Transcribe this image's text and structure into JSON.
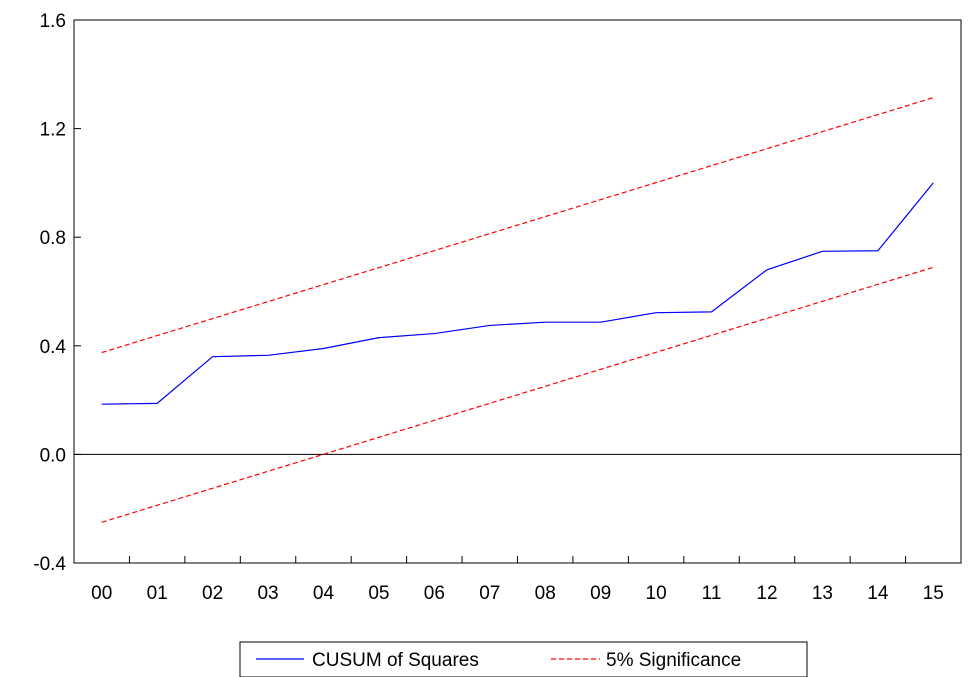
{
  "chart_data": {
    "type": "line",
    "title": "",
    "xlabel": "",
    "ylabel": "",
    "categories": [
      "00",
      "01",
      "02",
      "03",
      "04",
      "05",
      "06",
      "07",
      "08",
      "09",
      "10",
      "11",
      "12",
      "13",
      "14",
      "15"
    ],
    "ylim": [
      -0.4,
      1.6
    ],
    "yticks": [
      -0.4,
      0.0,
      0.4,
      0.8,
      1.2,
      1.6
    ],
    "ytick_labels": [
      "-0.4",
      "0.0",
      "0.4",
      "0.8",
      "1.2",
      "1.6"
    ],
    "grid": false,
    "zero_line": true,
    "legend_position": "bottom-center",
    "series": [
      {
        "name": "CUSUM of Squares",
        "style": "solid",
        "color": "#0000ff",
        "values": [
          0.185,
          0.188,
          0.36,
          0.365,
          0.39,
          0.43,
          0.445,
          0.475,
          0.487,
          0.487,
          0.522,
          0.525,
          0.68,
          0.748,
          0.75,
          1.0
        ]
      },
      {
        "name": "5% Significance",
        "style": "dashed",
        "color": "#ff0000",
        "values": [
          0.375,
          0.4376,
          0.5002,
          0.5628,
          0.6254,
          0.688,
          0.7506,
          0.8132,
          0.8758,
          0.9384,
          1.001,
          1.0636,
          1.1262,
          1.1888,
          1.2514,
          1.314
        ]
      },
      {
        "name": "5% Significance",
        "style": "dashed",
        "color": "#ff0000",
        "show_in_legend": false,
        "values": [
          -0.25,
          -0.1874,
          -0.1248,
          -0.0622,
          0.0004,
          0.063,
          0.1256,
          0.1882,
          0.2508,
          0.3134,
          0.376,
          0.4386,
          0.5012,
          0.5638,
          0.6264,
          0.689
        ]
      }
    ]
  }
}
